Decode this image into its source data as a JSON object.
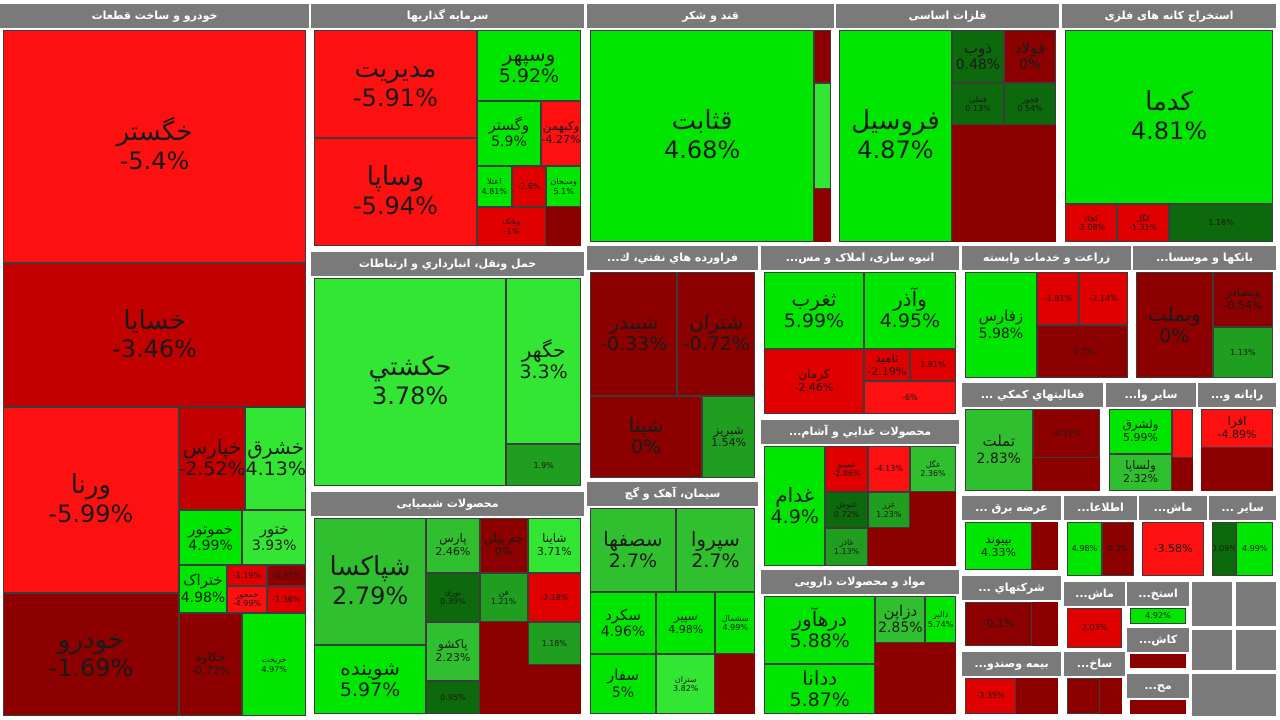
{
  "colors": {
    "bright_green": "#00e600",
    "light_green": "#33e633",
    "green": "#2fbf2f",
    "mid_green": "#1f9e1f",
    "dark_green": "#0c6a0c",
    "bright_red": "#ff1010",
    "red": "#e00000",
    "mid_red": "#c20000",
    "dark_red": "#8c0000",
    "header": "#7a7a7a"
  },
  "sectors": [
    {
      "title": "خودرو و ساخت قطعات",
      "tiles": [
        {
          "name": "خگستر",
          "change": "-5.4%",
          "color": "bright_red",
          "size": "xl"
        },
        {
          "name": "خسایا",
          "change": "-3.46%",
          "color": "mid_red",
          "size": "xl"
        },
        {
          "name": "ورنا",
          "change": "-5.99%",
          "color": "bright_red",
          "size": "xl"
        },
        {
          "name": "خودرو",
          "change": "-1.69%",
          "color": "dark_red",
          "size": "xl"
        },
        {
          "name": "خپارس",
          "change": "-2.52%",
          "color": "mid_red",
          "size": "l"
        },
        {
          "name": "خشرق",
          "change": "4.13%",
          "color": "light_green",
          "size": "l"
        },
        {
          "name": "خموتور",
          "change": "4.99%",
          "color": "bright_green",
          "size": "m"
        },
        {
          "name": "ختور",
          "change": "3.93%",
          "color": "light_green",
          "size": "m"
        },
        {
          "name": "ختراک",
          "change": "4.98%",
          "color": "bright_green",
          "size": "m"
        },
        {
          "name": "",
          "change": "-1.19%",
          "color": "red",
          "size": "xs"
        },
        {
          "name": "",
          "change": "-0.37%",
          "color": "dark_red",
          "size": "xs"
        },
        {
          "name": "خمحور",
          "change": "-4.99%",
          "color": "bright_red",
          "size": "xs"
        },
        {
          "name": "",
          "change": "-1.36%",
          "color": "red",
          "size": "xs"
        },
        {
          "name": "خکاوه",
          "change": "-0.72%",
          "color": "dark_red",
          "size": "s"
        },
        {
          "name": "خریخت",
          "change": "4.97%",
          "color": "bright_green",
          "size": "xs"
        }
      ]
    },
    {
      "title": "سرمایه گذاریها",
      "tiles": [
        {
          "name": "مدیریت",
          "change": "-5.91%",
          "color": "bright_red",
          "size": "xl"
        },
        {
          "name": "وساپا",
          "change": "-5.94%",
          "color": "bright_red",
          "size": "xl"
        },
        {
          "name": "وسپهر",
          "change": "5.92%",
          "color": "bright_green",
          "size": "l"
        },
        {
          "name": "وگستر",
          "change": "5.9%",
          "color": "bright_green",
          "size": "m"
        },
        {
          "name": "وکبهمن",
          "change": "-4.27%",
          "color": "bright_red",
          "size": "s"
        },
        {
          "name": "اعتلا",
          "change": "4.81%",
          "color": "bright_green",
          "size": "xs"
        },
        {
          "name": "",
          "change": "-2.6%",
          "color": "red",
          "size": "xs"
        },
        {
          "name": "وسبحان",
          "change": "5.1%",
          "color": "bright_green",
          "size": "xs"
        },
        {
          "name": "وبانک",
          "change": "-1%",
          "color": "red",
          "size": "xs"
        }
      ]
    },
    {
      "title": "قند و شکر",
      "tiles": [
        {
          "name": "قثابت",
          "change": "4.68%",
          "color": "bright_green",
          "size": "xl"
        },
        {
          "name": "",
          "change": "",
          "color": "dark_red",
          "size": "xs"
        },
        {
          "name": "",
          "change": "",
          "color": "light_green",
          "size": "xs"
        }
      ]
    },
    {
      "title": "فلزات اساسی",
      "tiles": [
        {
          "name": "فروسیل",
          "change": "4.87%",
          "color": "bright_green",
          "size": "xl"
        },
        {
          "name": "ذوب",
          "change": "0.48%",
          "color": "dark_green",
          "size": "m"
        },
        {
          "name": "فولاد",
          "change": "0%",
          "color": "dark_red",
          "size": "m"
        },
        {
          "name": "فملی",
          "change": "0.13%",
          "color": "dark_green",
          "size": "xs"
        },
        {
          "name": "فخوز",
          "change": "0.54%",
          "color": "dark_green",
          "size": "xs"
        }
      ]
    },
    {
      "title": "استخراج کانه های فلزی",
      "tiles": [
        {
          "name": "کدما",
          "change": "4.81%",
          "color": "bright_green",
          "size": "xl"
        },
        {
          "name": "کچاد",
          "change": "-2.08%",
          "color": "red",
          "size": "xs"
        },
        {
          "name": "کگل",
          "change": "-1.31%",
          "color": "red",
          "size": "xs"
        },
        {
          "name": "",
          "change": "1.16%",
          "color": "dark_green",
          "size": "xs"
        }
      ]
    },
    {
      "title": "حمل ونقل، انبارداري و ارتباطات",
      "tiles": [
        {
          "name": "حکشتي",
          "change": "3.78%",
          "color": "light_green",
          "size": "xl"
        },
        {
          "name": "حگهر",
          "change": "3.3%",
          "color": "light_green",
          "size": "l"
        },
        {
          "name": "",
          "change": "1.9%",
          "color": "mid_green",
          "size": "xs"
        }
      ]
    },
    {
      "title": "فراورده هاي نفتي، ك...",
      "tiles": [
        {
          "name": "شبندر",
          "change": "-0.33%",
          "color": "dark_red",
          "size": "l"
        },
        {
          "name": "شتران",
          "change": "-0.72%",
          "color": "dark_red",
          "size": "l"
        },
        {
          "name": "شپنا",
          "change": "0%",
          "color": "dark_red",
          "size": "l"
        },
        {
          "name": "شبریز",
          "change": "1.54%",
          "color": "mid_green",
          "size": "s"
        }
      ]
    },
    {
      "title": "انبوه سازی، املاک و مس...",
      "tiles": [
        {
          "name": "ثغرب",
          "change": "5.99%",
          "color": "bright_green",
          "size": "l"
        },
        {
          "name": "وآذر",
          "change": "4.95%",
          "color": "bright_green",
          "size": "l"
        },
        {
          "name": "کرمان",
          "change": "-2.46%",
          "color": "red",
          "size": "s"
        },
        {
          "name": "ثامید",
          "change": "-2.19%",
          "color": "red",
          "size": "s"
        },
        {
          "name": "",
          "change": "1.91%",
          "color": "red",
          "size": "xs"
        },
        {
          "name": "",
          "change": "-6%",
          "color": "bright_red",
          "size": "xs"
        }
      ]
    },
    {
      "title": "زراعت و خدمات وابسته",
      "tiles": [
        {
          "name": "زفارس",
          "change": "5.98%",
          "color": "bright_green",
          "size": "m"
        },
        {
          "name": "",
          "change": "-1.81%",
          "color": "red",
          "size": "xs"
        },
        {
          "name": "",
          "change": "-2.14%",
          "color": "red",
          "size": "xs"
        },
        {
          "name": "",
          "change": "-0.7%",
          "color": "dark_red",
          "size": "xs"
        }
      ]
    },
    {
      "title": "بانکها و موسسا...",
      "tiles": [
        {
          "name": "وبملت",
          "change": "0%",
          "color": "dark_red",
          "size": "l"
        },
        {
          "name": "وبصادر",
          "change": "-0.54%",
          "color": "dark_red",
          "size": "s"
        },
        {
          "name": "",
          "change": "1.13%",
          "color": "mid_green",
          "size": "xs"
        }
      ]
    },
    {
      "title": "محصولات شیمیایی",
      "tiles": [
        {
          "name": "شپاکسا",
          "change": "2.79%",
          "color": "green",
          "size": "xl"
        },
        {
          "name": "شوینده",
          "change": "5.97%",
          "color": "bright_green",
          "size": "l"
        },
        {
          "name": "پارس",
          "change": "2.46%",
          "color": "green",
          "size": "s"
        },
        {
          "name": "جم پیلن",
          "change": "0%",
          "color": "dark_red",
          "size": "s"
        },
        {
          "name": "شاینا",
          "change": "3.71%",
          "color": "light_green",
          "size": "s"
        },
        {
          "name": "نوری",
          "change": "0.39%",
          "color": "dark_green",
          "size": "xs"
        },
        {
          "name": "فن",
          "change": "1.21%",
          "color": "mid_green",
          "size": "xs"
        },
        {
          "name": "",
          "change": "-2.18%",
          "color": "red",
          "size": "xs"
        },
        {
          "name": "",
          "change": "1.18%",
          "color": "mid_green",
          "size": "xs"
        },
        {
          "name": "پاکشو",
          "change": "2.23%",
          "color": "green",
          "size": "s"
        },
        {
          "name": "",
          "change": "0.95%",
          "color": "dark_green",
          "size": "xs"
        }
      ]
    },
    {
      "title": "سیمان، آهک و گچ",
      "tiles": [
        {
          "name": "سصفها",
          "change": "2.7%",
          "color": "green",
          "size": "l"
        },
        {
          "name": "سپروا",
          "change": "2.7%",
          "color": "green",
          "size": "l"
        },
        {
          "name": "سکرد",
          "change": "4.96%",
          "color": "bright_green",
          "size": "m"
        },
        {
          "name": "سپیر",
          "change": "4.98%",
          "color": "bright_green",
          "size": "s"
        },
        {
          "name": "سشمال",
          "change": "4.99%",
          "color": "bright_green",
          "size": "xs"
        },
        {
          "name": "سفار",
          "change": "5%",
          "color": "bright_green",
          "size": "m"
        },
        {
          "name": "ستران",
          "change": "3.82%",
          "color": "light_green",
          "size": "xs"
        }
      ]
    },
    {
      "title": "محصولات غذایي و آشام...",
      "tiles": [
        {
          "name": "غدام",
          "change": "4.9%",
          "color": "bright_green",
          "size": "l"
        },
        {
          "name": "غمینو",
          "change": "-2.86%",
          "color": "red",
          "size": "xs"
        },
        {
          "name": "",
          "change": "-4.13%",
          "color": "bright_red",
          "size": "xs"
        },
        {
          "name": "غگل",
          "change": "2.36%",
          "color": "green",
          "size": "xs"
        },
        {
          "name": "غنوش",
          "change": "0.72%",
          "color": "dark_green",
          "size": "xs"
        },
        {
          "name": "غزر",
          "change": "1.23%",
          "color": "mid_green",
          "size": "xs"
        },
        {
          "name": "غاذر",
          "change": "1.13%",
          "color": "mid_green",
          "size": "xs"
        }
      ]
    },
    {
      "title": "مواد و محصولات دارویی",
      "tiles": [
        {
          "name": "درهآور",
          "change": "5.88%",
          "color": "bright_green",
          "size": "l"
        },
        {
          "name": "دزاپن",
          "change": "2.85%",
          "color": "green",
          "size": "m"
        },
        {
          "name": "دالبر",
          "change": "5.74%",
          "color": "bright_green",
          "size": "xs"
        },
        {
          "name": "ددانا",
          "change": "5.87%",
          "color": "bright_green",
          "size": "l"
        }
      ]
    },
    {
      "title": "فعالیتهاي کمکي ...",
      "tiles": [
        {
          "name": "تملت",
          "change": "2.83%",
          "color": "green",
          "size": "m"
        },
        {
          "name": "",
          "change": "-0.51%",
          "color": "dark_red",
          "size": "xs"
        }
      ]
    },
    {
      "title": "سایر وا...",
      "tiles": [
        {
          "name": "ولشرق",
          "change": "5.99%",
          "color": "bright_green",
          "size": "s"
        },
        {
          "name": "ولساپا",
          "change": "2.32%",
          "color": "green",
          "size": "s"
        },
        {
          "name": "",
          "change": "",
          "color": "bright_red",
          "size": "xs"
        }
      ]
    },
    {
      "title": "رایانه و...",
      "tiles": [
        {
          "name": "افرا",
          "change": "-4.89%",
          "color": "bright_red",
          "size": "s"
        }
      ]
    },
    {
      "title": "عرضه برق ...",
      "tiles": [
        {
          "name": "بپیوند",
          "change": "4.33%",
          "color": "bright_green",
          "size": "s"
        }
      ]
    },
    {
      "title": "اطلاعا...",
      "tiles": [
        {
          "name": "",
          "change": "4.98%",
          "color": "bright_green",
          "size": "xs"
        },
        {
          "name": "",
          "change": "0.3%",
          "color": "dark_red",
          "size": "xs"
        }
      ]
    },
    {
      "title": "ماش...",
      "tiles": [
        {
          "name": "",
          "change": "-3.58%",
          "color": "bright_red",
          "size": "s"
        }
      ]
    },
    {
      "title": "سایر ...",
      "tiles": [
        {
          "name": "",
          "change": "0.09%",
          "color": "dark_green",
          "size": "xs"
        },
        {
          "name": "",
          "change": "4.99%",
          "color": "bright_green",
          "size": "xs"
        }
      ]
    },
    {
      "title": "شرکتهاي ...",
      "tiles": [
        {
          "name": "",
          "change": "-0.1%",
          "color": "dark_red",
          "size": "s"
        }
      ]
    },
    {
      "title": "ماش...",
      "tiles": [
        {
          "name": "",
          "change": "2.03%",
          "color": "red",
          "size": "xs"
        }
      ]
    },
    {
      "title": "استخ...",
      "tiles": [
        {
          "name": "",
          "change": "4.92%",
          "color": "bright_green",
          "size": "xs"
        }
      ]
    },
    {
      "title": "بیمه وصندو...",
      "tiles": [
        {
          "name": "",
          "change": "-3.35%",
          "color": "red",
          "size": "xs"
        }
      ]
    },
    {
      "title": "ساخ...",
      "tiles": [
        {
          "name": "",
          "change": "",
          "color": "dark_red",
          "size": "xs"
        }
      ]
    },
    {
      "title": "کاش...",
      "tiles": []
    },
    {
      "title": "مح...",
      "tiles": []
    }
  ]
}
